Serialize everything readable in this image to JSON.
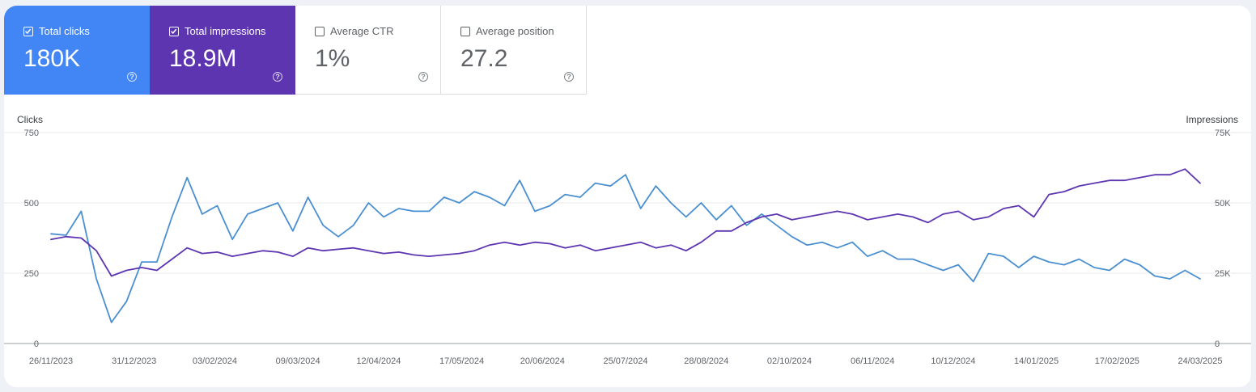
{
  "metrics": [
    {
      "key": "clicks",
      "label": "Total clicks",
      "value": "180K",
      "checked": true,
      "color": "#4285f4"
    },
    {
      "key": "impressions",
      "label": "Total impressions",
      "value": "18.9M",
      "checked": true,
      "color": "#5e35b1"
    },
    {
      "key": "ctr",
      "label": "Average CTR",
      "value": "1%",
      "checked": false,
      "color": "#ffffff"
    },
    {
      "key": "position",
      "label": "Average position",
      "value": "27.2",
      "checked": false,
      "color": "#ffffff"
    }
  ],
  "help_glyph": "?",
  "chart_data": {
    "type": "line",
    "left_axis": {
      "title": "Clicks",
      "ticks": [
        "750",
        "500",
        "250",
        "0"
      ],
      "ylim": [
        0,
        750
      ]
    },
    "right_axis": {
      "title": "Impressions",
      "ticks": [
        "75K",
        "50K",
        "25K",
        "0"
      ],
      "ylim": [
        0,
        75000
      ]
    },
    "x_ticks": [
      "26/11/2023",
      "31/12/2023",
      "03/02/2024",
      "09/03/2024",
      "12/04/2024",
      "17/05/2024",
      "20/06/2024",
      "25/07/2024",
      "28/08/2024",
      "02/10/2024",
      "06/11/2024",
      "10/12/2024",
      "14/01/2025",
      "17/02/2025",
      "24/03/2025"
    ],
    "x_range": [
      "26/11/2023",
      "24/03/2025"
    ],
    "grid": true,
    "series": [
      {
        "name": "Total clicks",
        "axis": "left",
        "color": "#4a8fd0",
        "sampling": "weekly",
        "values": [
          390,
          385,
          470,
          230,
          75,
          150,
          290,
          290,
          450,
          590,
          460,
          490,
          370,
          460,
          480,
          500,
          400,
          520,
          420,
          380,
          420,
          500,
          450,
          480,
          470,
          470,
          520,
          500,
          540,
          520,
          490,
          580,
          470,
          490,
          530,
          520,
          570,
          560,
          600,
          480,
          560,
          500,
          450,
          500,
          440,
          490,
          420,
          460,
          420,
          380,
          350,
          360,
          340,
          360,
          310,
          330,
          300,
          300,
          280,
          260,
          280,
          220,
          320,
          310,
          270,
          310,
          290,
          280,
          300,
          270,
          260,
          300,
          280,
          240,
          230,
          260,
          230
        ]
      },
      {
        "name": "Total impressions",
        "axis": "right",
        "color": "#5e35b1",
        "sampling": "weekly",
        "values": [
          37000,
          38000,
          37500,
          33000,
          24000,
          26000,
          27000,
          26000,
          30000,
          34000,
          32000,
          32500,
          31000,
          32000,
          33000,
          32500,
          31000,
          34000,
          33000,
          33500,
          34000,
          33000,
          32000,
          32500,
          31500,
          31000,
          31500,
          32000,
          33000,
          35000,
          36000,
          35000,
          36000,
          35500,
          34000,
          35000,
          33000,
          34000,
          35000,
          36000,
          34000,
          35000,
          33000,
          36000,
          40000,
          40000,
          43000,
          45000,
          46000,
          44000,
          45000,
          46000,
          47000,
          46000,
          44000,
          45000,
          46000,
          45000,
          43000,
          46000,
          47000,
          44000,
          45000,
          48000,
          49000,
          45000,
          53000,
          54000,
          56000,
          57000,
          58000,
          58000,
          59000,
          60000,
          60000,
          62000,
          57000
        ]
      }
    ]
  }
}
